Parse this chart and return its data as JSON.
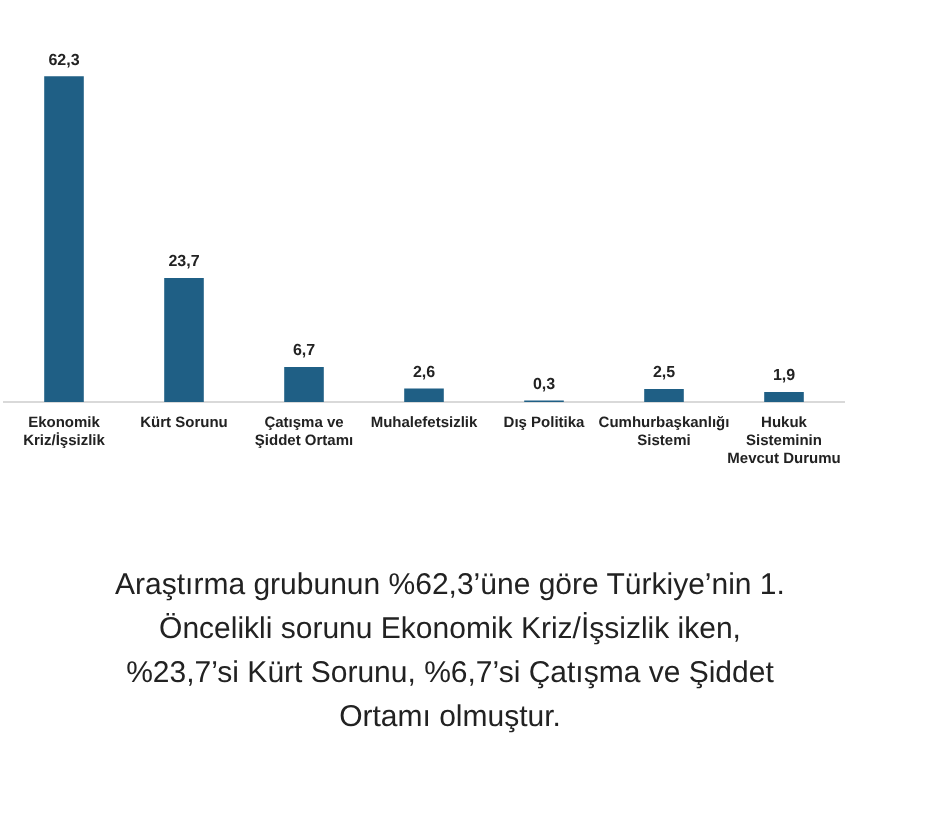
{
  "chart_data": {
    "type": "bar",
    "categories": [
      "Ekonomik Kriz/İşsizlik",
      "Kürt Sorunu",
      "Çatışma ve Şiddet Ortamı",
      "Muhalefetsizlik",
      "Dış Politika",
      "Cumhurbaşkanlığı Sistemi",
      "Hukuk Sisteminin Mevcut Durumu"
    ],
    "values": [
      62.3,
      23.7,
      6.7,
      2.6,
      0.3,
      2.5,
      1.9
    ],
    "color": "#1f5f85",
    "value_labels": [
      "62,3",
      "23,7",
      "6,7",
      "2,6",
      "0,3",
      "2,5",
      "1,9"
    ],
    "grid": false,
    "legend": false,
    "annotations": [
      "Araştırma grubunun %62,3’üne göre Türkiye’nin 1. Öncelikli sorunu Ekonomik Kriz/İşsizlik iken, %23,7’si Kürt Sorunu, %6,7’si Çatışma ve Şiddet Ortamı olmuştur."
    ]
  }
}
